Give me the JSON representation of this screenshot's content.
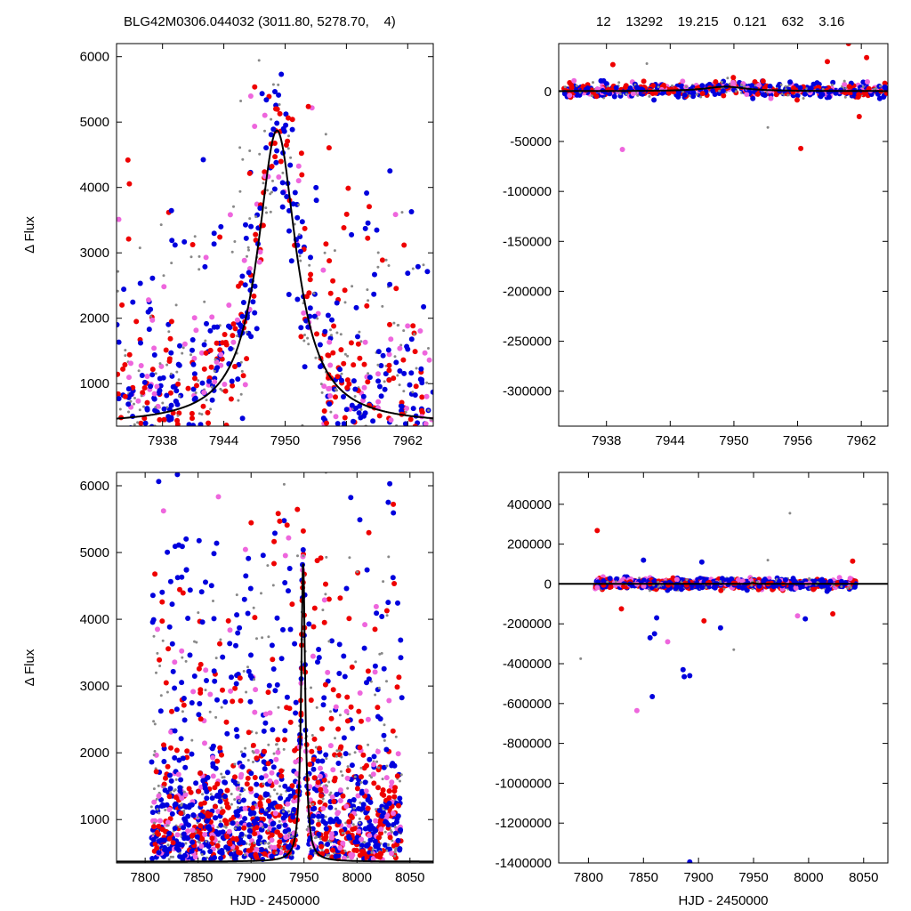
{
  "header": {
    "left": "BLG42M0306.044032 (3011.80, 5278.70,    4)",
    "right": "12    13292    19.215    0.121    632    3.16"
  },
  "colors": {
    "blue": "#0000dd",
    "red": "#ee0000",
    "pink": "#ee66dd",
    "gray": "#888888",
    "model": "#000000"
  },
  "chart_data": [
    {
      "type": "scatter",
      "panel": "top-left",
      "title": "",
      "xlabel": "",
      "ylabel": "Δ Flux",
      "xlim": [
        7933.5,
        7964.5
      ],
      "ylim": [
        350,
        6200
      ],
      "xticks": [
        7938,
        7944,
        7950,
        7956,
        7962
      ],
      "yticks": [
        1000,
        2000,
        3000,
        4000,
        5000,
        6000
      ],
      "model": {
        "type": "lorentzian",
        "t0": 7949.2,
        "peak": 4870,
        "base": 370,
        "width": 2.3
      },
      "series_colors": [
        "blue",
        "red",
        "pink",
        "gray"
      ],
      "sampling": "dense points in [7934,7964], strongest near peak at 7949"
    },
    {
      "type": "scatter",
      "panel": "top-right",
      "title": "",
      "xlabel": "",
      "ylabel": "",
      "xlim": [
        7933.5,
        7964.5
      ],
      "ylim": [
        -335000,
        48000
      ],
      "xticks": [
        7938,
        7944,
        7950,
        7956,
        7962
      ],
      "yticks": [
        0,
        -50000,
        -100000,
        -150000,
        -200000,
        -250000,
        -300000
      ],
      "model": {
        "type": "lorentzian",
        "t0": 7949.2,
        "peak": 4870,
        "base": 370,
        "width": 2.3
      },
      "outliers": [
        {
          "x": 7939.5,
          "y": -58000,
          "color": "pink"
        },
        {
          "x": 7956.3,
          "y": -57000,
          "color": "red"
        },
        {
          "x": 7961.8,
          "y": -25000,
          "color": "red"
        },
        {
          "x": 7960.8,
          "y": 48000,
          "color": "red"
        },
        {
          "x": 7962.5,
          "y": 34000,
          "color": "red"
        },
        {
          "x": 7958.8,
          "y": 30000,
          "color": "red"
        },
        {
          "x": 7938.6,
          "y": 27000,
          "color": "red"
        },
        {
          "x": 7941.8,
          "y": 28000,
          "color": "gray"
        },
        {
          "x": 7953.2,
          "y": -36000,
          "color": "gray"
        }
      ]
    },
    {
      "type": "scatter",
      "panel": "bottom-left",
      "title": "",
      "xlabel": "HJD - 2450000",
      "ylabel": "Δ Flux",
      "xlim": [
        7773,
        8072
      ],
      "ylim": [
        350,
        6200
      ],
      "xticks": [
        7800,
        7850,
        7900,
        7950,
        8000,
        8050
      ],
      "yticks": [
        1000,
        2000,
        3000,
        4000,
        5000,
        6000
      ],
      "model": {
        "type": "lorentzian",
        "t0": 7949.2,
        "peak": 4870,
        "base": 370,
        "width": 2.3
      },
      "sampling": "points in [7806,8043], denser toward bottom"
    },
    {
      "type": "scatter",
      "panel": "bottom-right",
      "title": "",
      "xlabel": "HJD - 2450000",
      "ylabel": "",
      "xlim": [
        7773,
        8072
      ],
      "ylim": [
        -1400000,
        560000
      ],
      "xticks": [
        7800,
        7850,
        7900,
        7950,
        8000,
        8050
      ],
      "yticks": [
        400000,
        200000,
        0,
        -200000,
        -400000,
        -600000,
        -800000,
        -1000000,
        -1200000,
        -1400000
      ],
      "model": {
        "type": "lorentzian",
        "t0": 7949.2,
        "peak": 4870,
        "base": 370,
        "width": 2.3
      },
      "outliers": [
        {
          "x": 7808,
          "y": 268000,
          "color": "red"
        },
        {
          "x": 7793,
          "y": -375000,
          "color": "gray"
        },
        {
          "x": 7830,
          "y": -125000,
          "color": "red"
        },
        {
          "x": 7844,
          "y": -635000,
          "color": "pink"
        },
        {
          "x": 7858,
          "y": -565000,
          "color": "blue"
        },
        {
          "x": 7860,
          "y": -250000,
          "color": "blue"
        },
        {
          "x": 7856,
          "y": -270000,
          "color": "blue"
        },
        {
          "x": 7862,
          "y": -170000,
          "color": "blue"
        },
        {
          "x": 7872,
          "y": -290000,
          "color": "pink"
        },
        {
          "x": 7886,
          "y": -430000,
          "color": "blue"
        },
        {
          "x": 7892,
          "y": -460000,
          "color": "blue"
        },
        {
          "x": 7887,
          "y": -465000,
          "color": "blue"
        },
        {
          "x": 7892,
          "y": -1395000,
          "color": "blue"
        },
        {
          "x": 7905,
          "y": -185000,
          "color": "red"
        },
        {
          "x": 7920,
          "y": -220000,
          "color": "blue"
        },
        {
          "x": 7932,
          "y": -330000,
          "color": "gray"
        },
        {
          "x": 7983,
          "y": 355000,
          "color": "gray"
        },
        {
          "x": 7990,
          "y": -160000,
          "color": "pink"
        },
        {
          "x": 7997,
          "y": -175000,
          "color": "blue"
        },
        {
          "x": 8022,
          "y": -150000,
          "color": "red"
        },
        {
          "x": 8040,
          "y": 115000,
          "color": "red"
        },
        {
          "x": 7963,
          "y": 120000,
          "color": "gray"
        },
        {
          "x": 7903,
          "y": 110000,
          "color": "blue"
        },
        {
          "x": 7850,
          "y": 120000,
          "color": "blue"
        }
      ]
    }
  ]
}
